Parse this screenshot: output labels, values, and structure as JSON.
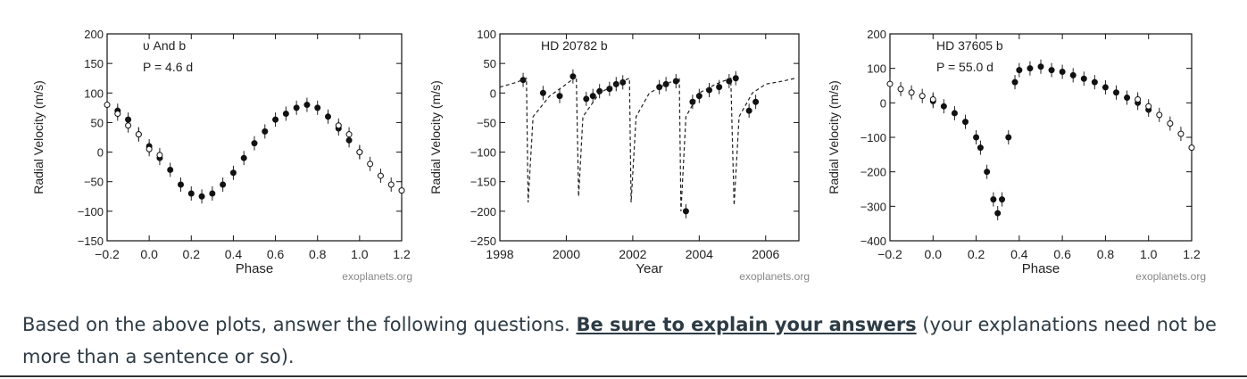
{
  "chart_data": [
    {
      "type": "scatter",
      "title": "υ And b",
      "subtitle": "P = 4.6 d",
      "xlabel": "Phase",
      "ylabel": "Radial Velocity (m/s)",
      "credit": "exoplanets.org",
      "xlim": [
        -0.2,
        1.2
      ],
      "ylim": [
        -150,
        200
      ],
      "xticks": [
        -0.2,
        0.0,
        0.2,
        0.4,
        0.6,
        0.8,
        1.0,
        1.2
      ],
      "xtick_labels": [
        "−0.2",
        "0.0",
        "0.2",
        "0.4",
        "0.6",
        "0.8",
        "1.0",
        "1.2"
      ],
      "yticks": [
        200,
        150,
        100,
        50,
        0,
        -50,
        -100,
        -150
      ],
      "ytick_labels": [
        "200",
        "150",
        "100",
        "50",
        "0",
        "−50",
        "−100",
        "−150"
      ],
      "series": [
        {
          "marker": "filled",
          "x": [
            -0.15,
            -0.1,
            -0.05,
            0.0,
            0.05,
            0.1,
            0.15,
            0.2,
            0.25,
            0.3,
            0.35,
            0.4,
            0.45,
            0.5,
            0.55,
            0.6,
            0.65,
            0.7,
            0.75,
            0.8,
            0.85,
            0.9,
            0.95,
            1.0
          ],
          "y": [
            70,
            55,
            30,
            10,
            -10,
            -30,
            -55,
            -70,
            -75,
            -70,
            -55,
            -35,
            -10,
            15,
            35,
            55,
            65,
            75,
            80,
            75,
            60,
            40,
            20,
            0
          ]
        },
        {
          "marker": "open",
          "x": [
            -0.2,
            -0.15,
            -0.1,
            -0.05,
            0.0,
            0.05,
            0.9,
            0.95,
            1.0,
            1.05,
            1.1,
            1.15,
            1.2
          ],
          "y": [
            80,
            65,
            45,
            30,
            5,
            -5,
            45,
            30,
            0,
            -20,
            -40,
            -55,
            -65
          ]
        }
      ]
    },
    {
      "type": "line",
      "title": "HD 20782 b",
      "xlabel": "Year",
      "ylabel": "Radial Velocity (m/s)",
      "credit": "exoplanets.org",
      "xlim": [
        1998,
        2007
      ],
      "ylim": [
        -250,
        100
      ],
      "xticks": [
        1998,
        2000,
        2002,
        2004,
        2006
      ],
      "xtick_labels": [
        "1998",
        "2000",
        "2002",
        "2004",
        "2006"
      ],
      "yticks": [
        100,
        50,
        0,
        -50,
        -100,
        -150,
        -200,
        -250
      ],
      "ytick_labels": [
        "100",
        "50",
        "0",
        "−50",
        "−100",
        "−150",
        "−200",
        "−250"
      ],
      "series": [
        {
          "marker": "filled",
          "x": [
            1998.7,
            1999.3,
            1999.8,
            2000.2,
            2000.6,
            2000.8,
            2001.0,
            2001.3,
            2001.5,
            2001.7,
            2002.8,
            2003.0,
            2003.3,
            2003.6,
            2003.8,
            2004.0,
            2004.3,
            2004.6,
            2004.9,
            2005.1,
            2005.5,
            2005.7
          ],
          "y": [
            22,
            0,
            -5,
            28,
            -10,
            -5,
            3,
            7,
            15,
            18,
            10,
            15,
            20,
            -200,
            -15,
            -5,
            5,
            10,
            20,
            25,
            -30,
            -15
          ]
        },
        {
          "marker": "line",
          "x": [
            1998.0,
            1998.5,
            1998.8,
            1998.85,
            1999.0,
            1999.5,
            2000.0,
            2000.3,
            2000.37,
            2000.5,
            2001.0,
            2001.5,
            2001.9,
            2001.95,
            2002.1,
            2002.5,
            2003.0,
            2003.4,
            2003.45,
            2003.6,
            2004.0,
            2004.5,
            2004.95,
            2005.05,
            2005.2,
            2005.6,
            2006.0,
            2006.5,
            2006.9
          ],
          "y": [
            10,
            18,
            25,
            -185,
            -40,
            -5,
            15,
            28,
            -175,
            -40,
            0,
            15,
            25,
            -185,
            -40,
            0,
            15,
            25,
            -200,
            -40,
            0,
            15,
            25,
            -190,
            -40,
            0,
            15,
            20,
            25
          ]
        }
      ]
    },
    {
      "type": "scatter",
      "title": "HD 37605 b",
      "subtitle": "P = 55.0 d",
      "xlabel": "Phase",
      "ylabel": "Radial Velocity (m/s)",
      "credit": "exoplanets.org",
      "xlim": [
        -0.2,
        1.2
      ],
      "ylim": [
        -400,
        200
      ],
      "xticks": [
        -0.2,
        0.0,
        0.2,
        0.4,
        0.6,
        0.8,
        1.0,
        1.2
      ],
      "xtick_labels": [
        "−0.2",
        "0.0",
        "0.2",
        "0.4",
        "0.6",
        "0.8",
        "1.0",
        "1.2"
      ],
      "yticks": [
        200,
        100,
        0,
        -100,
        -200,
        -300,
        -400
      ],
      "ytick_labels": [
        "200",
        "100",
        "0",
        "−100",
        "−200",
        "−300",
        "−400"
      ],
      "series": [
        {
          "marker": "filled",
          "x": [
            0.0,
            0.05,
            0.1,
            0.15,
            0.2,
            0.22,
            0.25,
            0.28,
            0.3,
            0.32,
            0.35,
            0.38,
            0.4,
            0.45,
            0.5,
            0.55,
            0.6,
            0.65,
            0.7,
            0.75,
            0.8,
            0.85,
            0.9,
            0.95,
            1.0
          ],
          "y": [
            5,
            -10,
            -30,
            -55,
            -100,
            -130,
            -200,
            -280,
            -320,
            -280,
            -100,
            60,
            95,
            100,
            105,
            95,
            90,
            80,
            70,
            60,
            45,
            30,
            15,
            0,
            -20
          ]
        },
        {
          "marker": "open",
          "x": [
            -0.2,
            -0.15,
            -0.1,
            -0.05,
            0.0,
            0.95,
            1.0,
            1.05,
            1.1,
            1.15,
            1.2
          ],
          "y": [
            55,
            40,
            30,
            20,
            10,
            10,
            -10,
            -35,
            -60,
            -90,
            -130
          ]
        }
      ]
    }
  ],
  "question": {
    "before": "Based on the above plots, answer the following questions.  ",
    "emphasis": "Be sure to explain your answers",
    "after": " (your explanations need not be more than a sentence or so)."
  }
}
